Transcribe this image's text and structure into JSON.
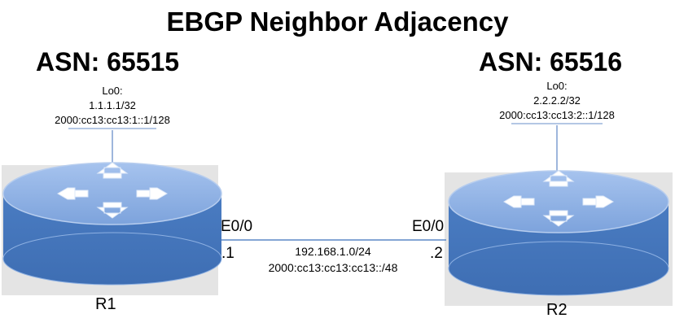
{
  "title": "EBGP Neighbor Adjacency",
  "r1": {
    "asn": "ASN: 65515",
    "loopback_label": "Lo0:",
    "ipv4": "1.1.1.1/32",
    "ipv6": "2000:cc13:cc13:1::1/128",
    "interface": "E0/0",
    "host": ".1",
    "name": "R1"
  },
  "r2": {
    "asn": "ASN: 65516",
    "loopback_label": "Lo0:",
    "ipv4": "2.2.2.2/32",
    "ipv6": "2000:cc13:cc13:2::1/128",
    "interface": "E0/0",
    "host": ".2",
    "name": "R2"
  },
  "link": {
    "ipv4": "192.168.1.0/24",
    "ipv6": "2000:cc13:cc13:cc13::/48"
  },
  "colors": {
    "router_top": "#8fb2e6",
    "router_side": "#4f81bd",
    "router_edge": "#a9c4ea",
    "line": "#5b87c5",
    "panel": "#e3e3e3"
  }
}
